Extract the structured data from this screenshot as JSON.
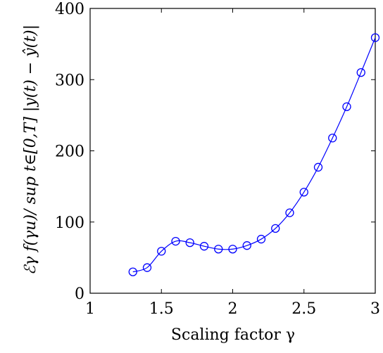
{
  "chart_data": {
    "type": "line",
    "title": "",
    "xlabel": "Scaling factor γ",
    "ylabel": "ℰγ f(γu)/ sup t∈[0,T] |y(t) − ŷ(t)|",
    "xlim": [
      1,
      3
    ],
    "ylim": [
      0,
      400
    ],
    "xticks": [
      1,
      1.5,
      2,
      2.5,
      3
    ],
    "xtick_labels": [
      "1",
      "1.5",
      "2",
      "2.5",
      "3"
    ],
    "yticks": [
      0,
      100,
      200,
      300,
      400
    ],
    "ytick_labels": [
      "0",
      "100",
      "200",
      "300",
      "400"
    ],
    "grid": false,
    "series": [
      {
        "color": "#0000ff",
        "marker": "circle",
        "x": [
          1.3,
          1.4,
          1.5,
          1.6,
          1.7,
          1.8,
          1.9,
          2.0,
          2.1,
          2.2,
          2.3,
          2.4,
          2.5,
          2.6,
          2.7,
          2.8,
          2.9,
          3.0
        ],
        "y": [
          30,
          36,
          59,
          73,
          71,
          66,
          62,
          62,
          67,
          76,
          91,
          113,
          142,
          177,
          218,
          262,
          310,
          359
        ]
      }
    ]
  }
}
